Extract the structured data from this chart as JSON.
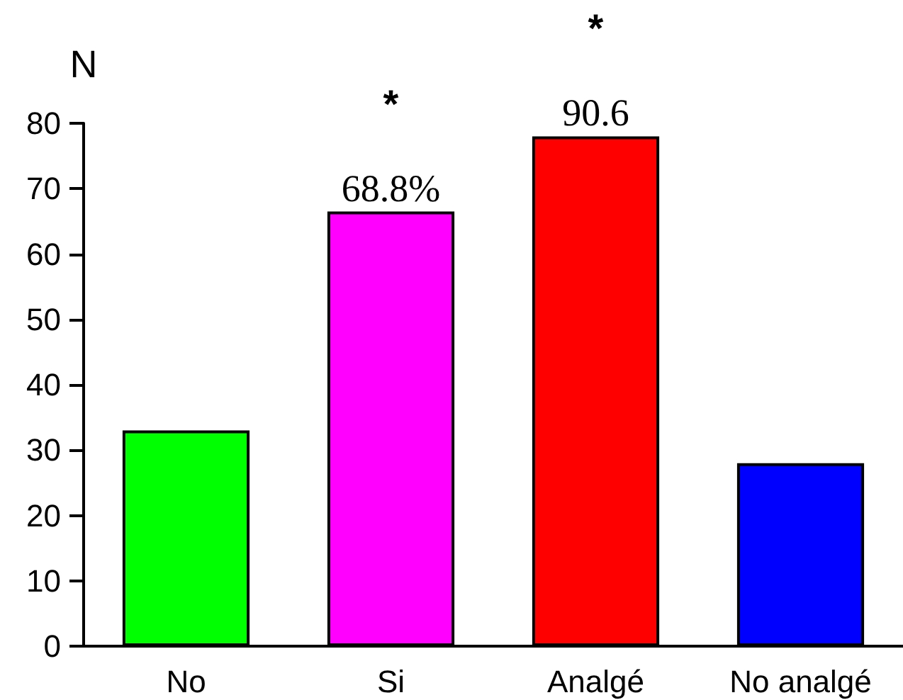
{
  "chart_data": {
    "type": "bar",
    "ylabel": "N",
    "categories": [
      "No",
      "Si",
      "Analgé",
      "No analgé"
    ],
    "values": [
      33,
      66.5,
      78,
      28
    ],
    "colors": [
      "#00ff00",
      "#ff00ff",
      "#ff0000",
      "#0000ff"
    ],
    "ylim": [
      0,
      80
    ],
    "yticks": [
      0,
      10,
      20,
      30,
      40,
      50,
      60,
      70,
      80
    ],
    "annotations": [
      {
        "text": "68.8%",
        "x": "Si",
        "y": 66.5
      },
      {
        "text": "*",
        "x": "Si",
        "y": 66.5
      },
      {
        "text": "90.6",
        "x": "Analgé",
        "y": 78
      },
      {
        "text": "*",
        "x": "Analgé",
        "y": 78
      }
    ]
  }
}
